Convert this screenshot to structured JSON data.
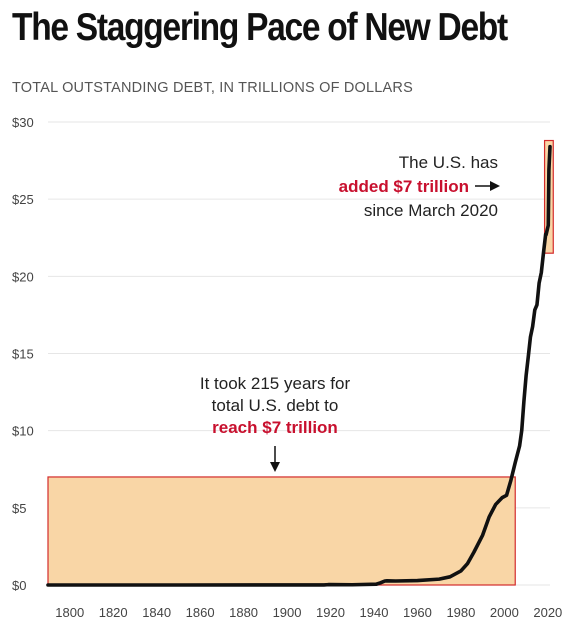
{
  "chart_data": {
    "type": "line",
    "title": "The Staggering Pace of New Debt",
    "subtitle": "TOTAL OUTSTANDING DEBT, IN TRILLIONS OF DOLLARS",
    "xlim": [
      1790,
      2021
    ],
    "ylim": [
      0,
      30
    ],
    "x_ticks": [
      1800,
      1820,
      1840,
      1860,
      1880,
      1900,
      1920,
      1940,
      1960,
      1980,
      2000,
      2020
    ],
    "y_ticks": [
      0,
      5,
      10,
      15,
      20,
      25,
      30
    ],
    "y_tick_labels": [
      "$0",
      "$5",
      "$10",
      "$15",
      "$20",
      "$25",
      "$30"
    ],
    "grid": true,
    "series": [
      {
        "color": "#111111",
        "x": [
          1790,
          1800,
          1850,
          1900,
          1917,
          1919,
          1930,
          1941,
          1943,
          1945,
          1946,
          1950,
          1960,
          1970,
          1975,
          1980,
          1983,
          1986,
          1990,
          1993,
          1996,
          1999,
          2001,
          2003,
          2005,
          2007,
          2008,
          2009,
          2010,
          2011,
          2012,
          2013,
          2014,
          2015,
          2016,
          2017,
          2018,
          2019,
          2019.2,
          2020.2,
          2020.5,
          2021
        ],
        "y": [
          0.0001,
          0.0001,
          0.0001,
          0.001,
          0.003,
          0.025,
          0.016,
          0.05,
          0.14,
          0.26,
          0.27,
          0.26,
          0.29,
          0.38,
          0.53,
          0.91,
          1.38,
          2.13,
          3.23,
          4.41,
          5.22,
          5.66,
          5.81,
          6.78,
          7.93,
          9.01,
          10.02,
          11.91,
          13.56,
          14.79,
          16.07,
          16.74,
          17.82,
          18.15,
          19.57,
          20.24,
          21.52,
          22.72,
          22.7,
          23.3,
          26.9,
          28.4
        ]
      }
    ],
    "annotations": [
      {
        "lines": [
          "It took 215 years for",
          "total U.S. debt to"
        ],
        "highlight": "reach $7 trillion",
        "box_x": [
          1790,
          2005
        ],
        "box_y": [
          0,
          7
        ]
      },
      {
        "lines": [
          "The U.S. has"
        ],
        "highlight": "added $7 trillion",
        "after": [
          "since March 2020"
        ],
        "box_x": [
          2018.5,
          2022.5
        ],
        "box_y": [
          21.5,
          28.8
        ]
      }
    ],
    "colors": {
      "box_fill": "#f9d6a6",
      "box_stroke": "#d32b2b",
      "highlight": "#c8102e",
      "grid": "#e6e6e6"
    }
  }
}
